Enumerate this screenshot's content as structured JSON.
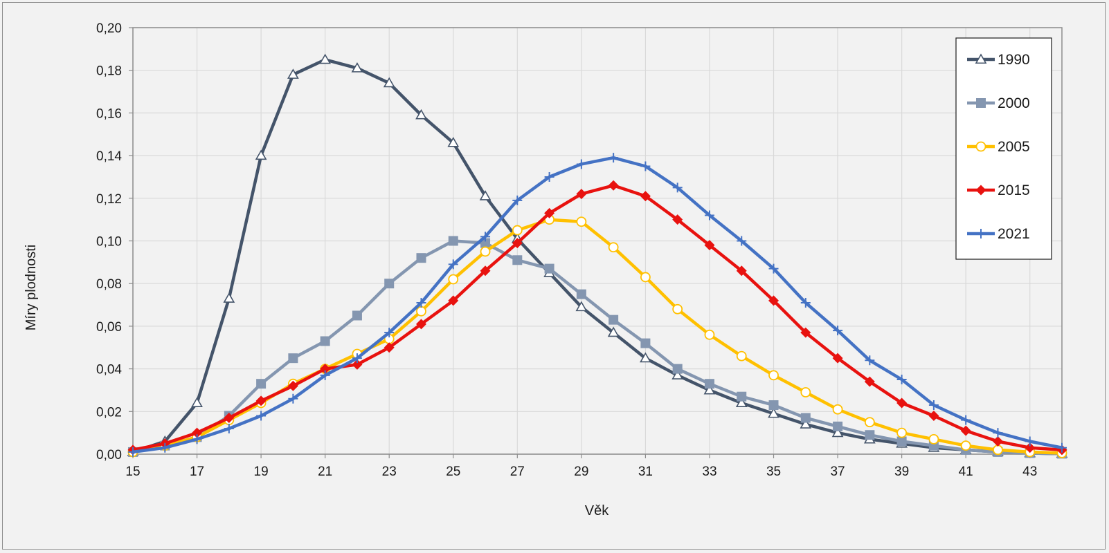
{
  "chart_data": {
    "type": "line",
    "xlabel": "Věk",
    "ylabel": "Míry plodnosti",
    "xlim": [
      15,
      44
    ],
    "ylim": [
      0,
      0.2
    ],
    "x_ticks": [
      15,
      17,
      19,
      21,
      23,
      25,
      27,
      29,
      31,
      33,
      35,
      37,
      39,
      41,
      43
    ],
    "x_tick_labels": [
      "15",
      "17",
      "19",
      "21",
      "23",
      "25",
      "27",
      "29",
      "31",
      "33",
      "35",
      "37",
      "39",
      "41",
      "43"
    ],
    "y_ticks": [
      0,
      0.02,
      0.04,
      0.06,
      0.08,
      0.1,
      0.12,
      0.14,
      0.16,
      0.18,
      0.2
    ],
    "y_tick_labels": [
      "0,00",
      "0,02",
      "0,04",
      "0,06",
      "0,08",
      "0,10",
      "0,12",
      "0,14",
      "0,16",
      "0,18",
      "0,20"
    ],
    "grid": true,
    "legend_position": "top-right",
    "x": [
      15,
      16,
      17,
      18,
      19,
      20,
      21,
      22,
      23,
      24,
      25,
      26,
      27,
      28,
      29,
      30,
      31,
      32,
      33,
      34,
      35,
      36,
      37,
      38,
      39,
      40,
      41,
      42,
      43,
      44
    ],
    "series": [
      {
        "name": "1990",
        "color": "#44546a",
        "marker": "triangle-open",
        "values": [
          0.001,
          0.006,
          0.024,
          0.073,
          0.14,
          0.178,
          0.185,
          0.181,
          0.174,
          0.159,
          0.146,
          0.121,
          0.101,
          0.085,
          0.069,
          0.057,
          0.045,
          0.037,
          0.03,
          0.024,
          0.019,
          0.014,
          0.01,
          0.007,
          0.005,
          0.003,
          0.002,
          0.001,
          0.0005,
          0.0002
        ]
      },
      {
        "name": "2000",
        "color": "#8496b0",
        "marker": "square",
        "values": [
          0.001,
          0.004,
          0.008,
          0.018,
          0.033,
          0.045,
          0.053,
          0.065,
          0.08,
          0.092,
          0.1,
          0.099,
          0.091,
          0.087,
          0.075,
          0.063,
          0.052,
          0.04,
          0.033,
          0.027,
          0.023,
          0.017,
          0.013,
          0.009,
          0.006,
          0.004,
          0.002,
          0.001,
          0.0005,
          0.0002
        ]
      },
      {
        "name": "2005",
        "color": "#ffc000",
        "marker": "circle-open",
        "values": [
          0.001,
          0.004,
          0.008,
          0.016,
          0.024,
          0.033,
          0.04,
          0.047,
          0.054,
          0.067,
          0.082,
          0.095,
          0.105,
          0.11,
          0.109,
          0.097,
          0.083,
          0.068,
          0.056,
          0.046,
          0.037,
          0.029,
          0.021,
          0.015,
          0.01,
          0.007,
          0.004,
          0.002,
          0.001,
          0.0005
        ]
      },
      {
        "name": "2015",
        "color": "#e8120f",
        "marker": "diamond",
        "values": [
          0.002,
          0.005,
          0.01,
          0.017,
          0.025,
          0.032,
          0.04,
          0.042,
          0.05,
          0.061,
          0.072,
          0.086,
          0.099,
          0.113,
          0.122,
          0.126,
          0.121,
          0.11,
          0.098,
          0.086,
          0.072,
          0.057,
          0.045,
          0.034,
          0.024,
          0.018,
          0.011,
          0.006,
          0.003,
          0.002
        ]
      },
      {
        "name": "2021",
        "color": "#4472c4",
        "marker": "plus",
        "values": [
          0.001,
          0.003,
          0.007,
          0.012,
          0.018,
          0.026,
          0.037,
          0.045,
          0.057,
          0.071,
          0.089,
          0.102,
          0.119,
          0.13,
          0.136,
          0.139,
          0.135,
          0.125,
          0.112,
          0.1,
          0.087,
          0.071,
          0.058,
          0.044,
          0.035,
          0.023,
          0.016,
          0.01,
          0.006,
          0.003
        ]
      }
    ]
  }
}
